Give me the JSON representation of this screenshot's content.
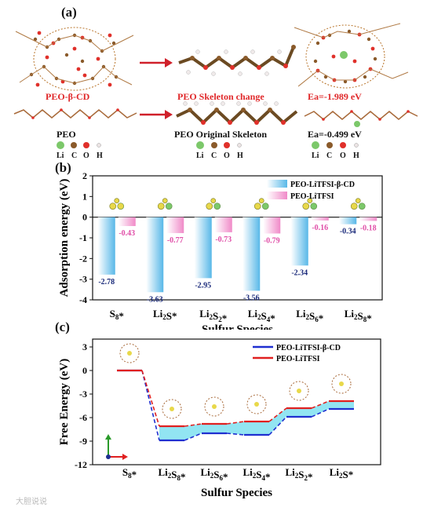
{
  "panel_a": {
    "label": "(a)",
    "mol_labels": {
      "peo_bcd": "PEO-β-CD",
      "peo_skeleton_change": "PEO Skeleton change",
      "ea_top": "Ea=-1.989 eV",
      "peo": "PEO",
      "peo_original": "PEO Original Skeleton",
      "ea_bottom": "Ea=-0.499 eV"
    },
    "atom_legend": [
      "Li",
      "C",
      "O",
      "H"
    ],
    "atom_colors": {
      "Li": "#7cc86a",
      "C": "#8a5a2a",
      "O": "#e0302a",
      "H": "#ece4e4"
    }
  },
  "panel_b": {
    "label": "(b)"
  },
  "panel_c": {
    "label": "(c)"
  },
  "watermark": "大胆说说",
  "chart_data": [
    {
      "type": "bar",
      "ylabel": "Adsorption energy (eV)",
      "xlabel": "Sulfur Species",
      "categories": [
        "S8*",
        "Li2S*",
        "Li2S2*",
        "Li2S4*",
        "Li2S6*",
        "Li2S8*"
      ],
      "ylim": [
        -4,
        2
      ],
      "yticks": [
        -4,
        -3,
        -2,
        -1,
        0,
        1,
        2
      ],
      "legend_position": "top-right",
      "series": [
        {
          "name": "PEO-LiTFSI-β-CD",
          "color": "#58b8e8",
          "values": [
            -2.78,
            -3.63,
            -2.95,
            -3.56,
            -2.34,
            -0.34
          ],
          "labels": [
            "-2.78",
            "-3.63",
            "-2.95",
            "-3.56",
            "-2.34",
            "-0.34"
          ]
        },
        {
          "name": "PEO-LiTFSI",
          "color": "#f08ac8",
          "values": [
            -0.43,
            -0.77,
            -0.73,
            -0.79,
            -0.16,
            -0.18
          ],
          "labels": [
            "-0.43",
            "-0.77",
            "-0.73",
            "-0.79",
            "-0.16",
            "-0.18"
          ]
        }
      ]
    },
    {
      "type": "line",
      "ylabel": "Free Energy (eV)",
      "xlabel": "Sulfur Species",
      "categories": [
        "S8*",
        "Li2S8*",
        "Li2S6*",
        "Li2S4*",
        "Li2S2*",
        "Li2S*"
      ],
      "ylim": [
        -12,
        4
      ],
      "yticks": [
        -12,
        -9,
        -6,
        -3,
        0,
        3
      ],
      "legend_position": "top-right",
      "series": [
        {
          "name": "PEO-LiTFSI-β-CD",
          "color": "#1f2fd0",
          "values": [
            0,
            -8.9,
            -8.0,
            -8.2,
            -5.9,
            -4.9
          ]
        },
        {
          "name": "PEO-LiTFSI",
          "color": "#e02020",
          "values": [
            0,
            -7.1,
            -6.8,
            -6.5,
            -4.8,
            -3.9
          ]
        }
      ]
    }
  ]
}
